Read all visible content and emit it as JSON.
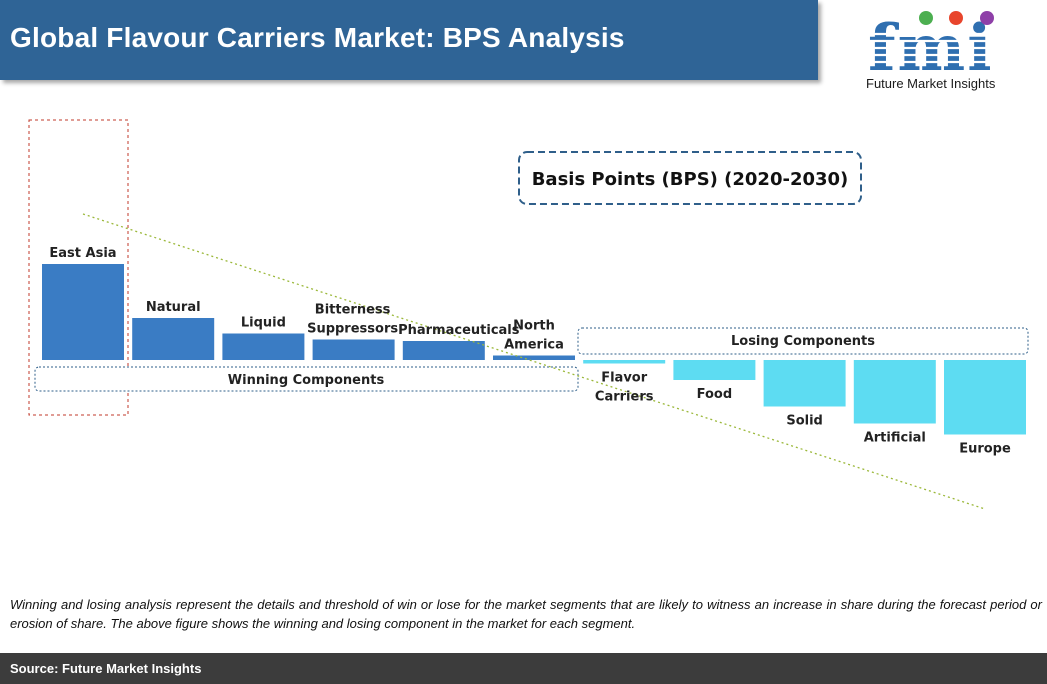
{
  "header": {
    "title": "Global Flavour Carriers Market: BPS Analysis"
  },
  "logo": {
    "letters": "fmi",
    "caption": "Future Market Insights"
  },
  "chart_data": {
    "type": "bar",
    "title": "Basis Points (BPS) (2020-2030)",
    "categories": [
      "East Asia",
      "Natural",
      "Liquid",
      "Bitterness Suppressors",
      "Pharmaceuticals",
      "North America",
      "Flavor Carriers",
      "Food",
      "Solid",
      "Artificial",
      "Europe"
    ],
    "values": [
      192,
      84,
      53,
      41,
      38,
      9,
      -7,
      -40,
      -93,
      -127,
      -149
    ],
    "ylim": [
      -200,
      200
    ],
    "groups": {
      "winning": "Winning Components",
      "losing": "Losing Components"
    },
    "colors": {
      "winning": "#3a7cc4",
      "losing": "#5ddcf2"
    },
    "trendline": "dotted",
    "highlight": "East Asia"
  },
  "footnote": "Winning and losing analysis represent the details and threshold of win or lose for the market segments that are likely to witness an increase in share during the forecast period or erosion of share. The above figure shows the winning and losing component in the market for each segment.",
  "source": "Source: Future Market Insights"
}
